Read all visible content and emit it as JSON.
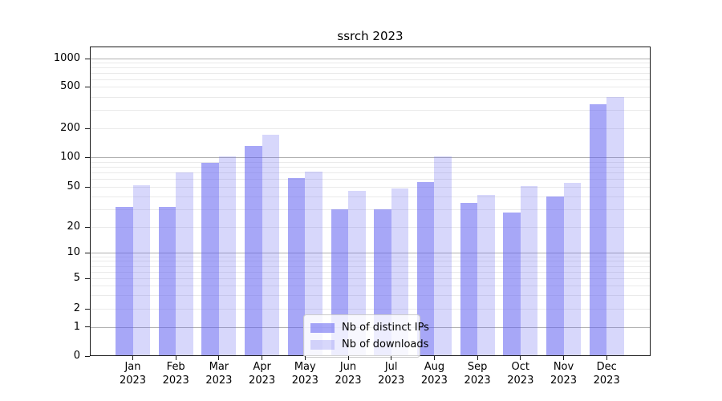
{
  "chart_data": {
    "type": "bar",
    "title": "ssrch 2023",
    "categories": [
      "Jan 2023",
      "Feb 2023",
      "Mar 2023",
      "Apr 2023",
      "May 2023",
      "Jun 2023",
      "Jul 2023",
      "Aug 2023",
      "Sep 2023",
      "Oct 2023",
      "Nov 2023",
      "Dec 2023"
    ],
    "series": [
      {
        "name": "Nb of distinct IPs",
        "values": [
          32,
          32,
          88,
          132,
          61,
          30,
          30,
          56,
          35,
          28,
          40,
          340
        ],
        "color": "#5f5ff0",
        "alpha": 0.55
      },
      {
        "name": "Nb of downloads",
        "values": [
          52,
          70,
          102,
          170,
          71,
          46,
          48,
          101,
          42,
          51,
          55,
          400
        ],
        "color": "#5f5ff0",
        "alpha": 0.25
      }
    ],
    "xlabel": "",
    "ylabel": "",
    "yscale": "asinh",
    "yticks": [
      0,
      1,
      2,
      5,
      10,
      20,
      50,
      100,
      200,
      500,
      1000
    ],
    "ylim": [
      0,
      1100
    ],
    "grid": true,
    "legend_position": "lower-center"
  },
  "colors": {
    "bar_base": "#5f5ff0",
    "major_gridline": "#b0b0b0",
    "minor_gridline": "#eaeaea",
    "axis": "#1a1a1a",
    "legend_border": "#cccccc"
  }
}
